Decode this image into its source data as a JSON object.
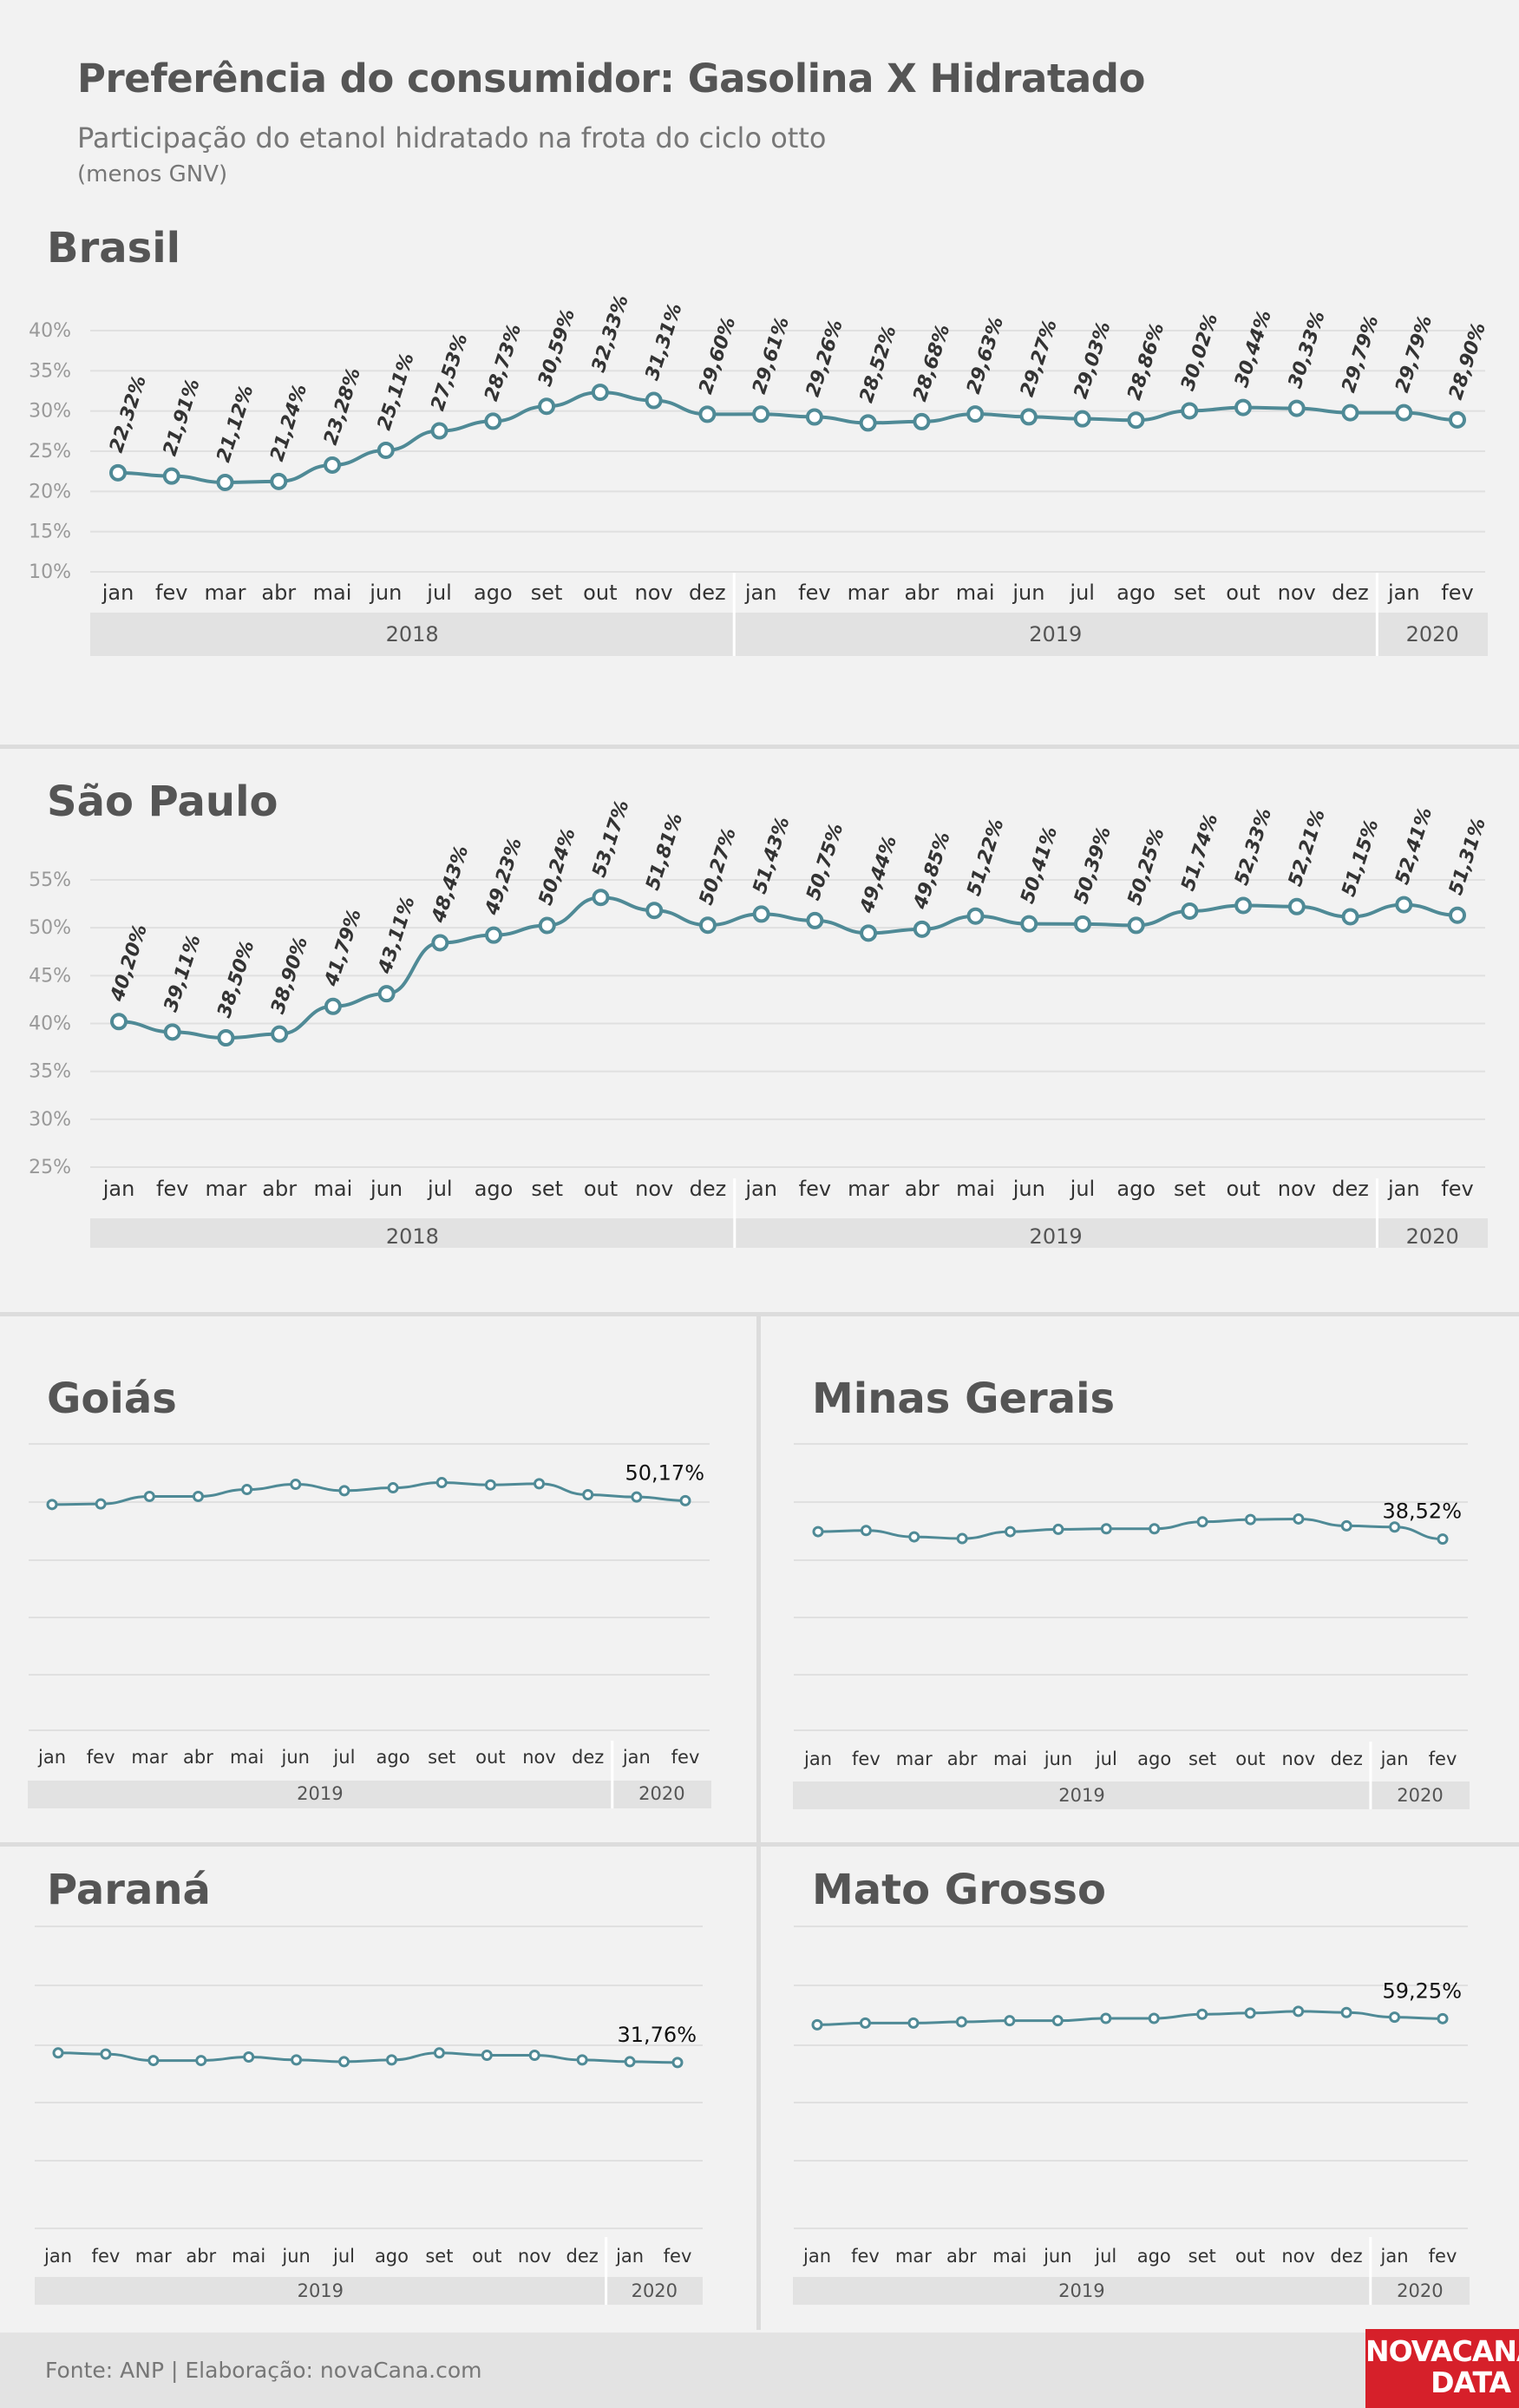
{
  "header": {
    "title": "Preferência do consumidor: Gasolina X Hidratado",
    "subtitle": "Participação do etanol hidratado na frota do ciclo otto",
    "note": "(menos GNV)"
  },
  "footer": {
    "source": "Fonte: ANP | Elaboração: novaCana.com",
    "logo_line1": "NOVACANA",
    "logo_line2": "DATA"
  },
  "colors": {
    "line": "#4f8a96",
    "marker_fill": "#ffffff",
    "year_band": "#e2e2e2",
    "grid": "#e0e0e0",
    "logo": "#d6202a"
  },
  "chart_data": [
    {
      "id": "brasil",
      "type": "line",
      "title": "Brasil",
      "categories": [
        "jan",
        "fev",
        "mar",
        "abr",
        "mai",
        "jun",
        "jul",
        "ago",
        "set",
        "out",
        "nov",
        "dez",
        "jan",
        "fev",
        "mar",
        "abr",
        "mai",
        "jun",
        "jul",
        "ago",
        "set",
        "out",
        "nov",
        "dez",
        "jan",
        "fev"
      ],
      "years": [
        {
          "label": "2018",
          "count": 12
        },
        {
          "label": "2019",
          "count": 12
        },
        {
          "label": "2020",
          "count": 2
        }
      ],
      "values": [
        22.32,
        21.91,
        21.12,
        21.24,
        23.28,
        25.11,
        27.53,
        28.73,
        30.59,
        32.33,
        31.31,
        29.6,
        29.61,
        29.26,
        28.52,
        28.68,
        29.63,
        29.27,
        29.03,
        28.86,
        30.02,
        30.44,
        30.33,
        29.79,
        29.79,
        28.9
      ],
      "labels": [
        "22,32%",
        "21,91%",
        "21,12%",
        "21,24%",
        "23,28%",
        "25,11%",
        "27,53%",
        "28,73%",
        "30,59%",
        "32,33%",
        "31,31%",
        "29,60%",
        "29,61%",
        "29,26%",
        "28,52%",
        "28,68%",
        "29,63%",
        "29,27%",
        "29,03%",
        "28,86%",
        "30,02%",
        "30,44%",
        "30,33%",
        "29,79%",
        "29,79%",
        "28,90%"
      ],
      "yticks": [
        "40%",
        "35%",
        "30%",
        "25%",
        "20%",
        "15%",
        "10%"
      ],
      "ylim": [
        10,
        40
      ],
      "grid": true
    },
    {
      "id": "sao-paulo",
      "type": "line",
      "title": "São Paulo",
      "categories": [
        "jan",
        "fev",
        "mar",
        "abr",
        "mai",
        "jun",
        "jul",
        "ago",
        "set",
        "out",
        "nov",
        "dez",
        "jan",
        "fev",
        "mar",
        "abr",
        "mai",
        "jun",
        "jul",
        "ago",
        "set",
        "out",
        "nov",
        "dez",
        "jan",
        "fev"
      ],
      "years": [
        {
          "label": "2018",
          "count": 12
        },
        {
          "label": "2019",
          "count": 12
        },
        {
          "label": "2020",
          "count": 2
        }
      ],
      "values": [
        40.2,
        39.11,
        38.5,
        38.9,
        41.79,
        43.11,
        48.43,
        49.23,
        50.24,
        53.17,
        51.81,
        50.27,
        51.43,
        50.75,
        49.44,
        49.85,
        51.22,
        50.41,
        50.39,
        50.25,
        51.74,
        52.33,
        52.21,
        51.15,
        52.41,
        51.31
      ],
      "labels": [
        "40,20%",
        "39,11%",
        "38,50%",
        "38,90%",
        "41,79%",
        "43,11%",
        "48,43%",
        "49,23%",
        "50,24%",
        "53,17%",
        "51,81%",
        "50,27%",
        "51,43%",
        "50,75%",
        "49,44%",
        "49,85%",
        "51,22%",
        "50,41%",
        "50,39%",
        "50,25%",
        "51,74%",
        "52,33%",
        "52,21%",
        "51,15%",
        "52,41%",
        "51,31%"
      ],
      "yticks": [
        "55%",
        "50%",
        "45%",
        "40%",
        "35%",
        "30%",
        "25%"
      ],
      "ylim": [
        25,
        55
      ],
      "grid": true
    },
    {
      "id": "goias",
      "type": "line",
      "title": "Goiás",
      "categories": [
        "jan",
        "fev",
        "mar",
        "abr",
        "mai",
        "jun",
        "jul",
        "ago",
        "set",
        "out",
        "nov",
        "dez",
        "jan",
        "fev"
      ],
      "years": [
        {
          "label": "2019",
          "count": 12
        },
        {
          "label": "2020",
          "count": 2
        }
      ],
      "values": [
        49.5,
        49.6,
        50.9,
        50.9,
        52.1,
        53.0,
        51.9,
        52.4,
        53.3,
        52.9,
        53.1,
        51.2,
        50.8,
        50.17
      ],
      "last_label": "50,17%",
      "ylim": [
        20,
        60
      ],
      "grid": true
    },
    {
      "id": "minas-gerais",
      "type": "line",
      "title": "Minas Gerais",
      "categories": [
        "jan",
        "fev",
        "mar",
        "abr",
        "mai",
        "jun",
        "jul",
        "ago",
        "set",
        "out",
        "nov",
        "dez",
        "jan",
        "fev"
      ],
      "years": [
        {
          "label": "2019",
          "count": 12
        },
        {
          "label": "2020",
          "count": 2
        }
      ],
      "values": [
        39.8,
        40.0,
        38.9,
        38.6,
        39.8,
        40.2,
        40.3,
        40.3,
        41.5,
        41.9,
        42.0,
        40.8,
        40.6,
        38.52
      ],
      "last_label": "38,52%",
      "ylim": [
        15,
        55
      ],
      "grid": true
    },
    {
      "id": "parana",
      "type": "line",
      "title": "Paraná",
      "categories": [
        "jan",
        "fev",
        "mar",
        "abr",
        "mai",
        "jun",
        "jul",
        "ago",
        "set",
        "out",
        "nov",
        "dez",
        "jan",
        "fev"
      ],
      "years": [
        {
          "label": "2019",
          "count": 12
        },
        {
          "label": "2020",
          "count": 2
        }
      ],
      "values": [
        33.4,
        33.2,
        32.1,
        32.1,
        32.7,
        32.2,
        31.9,
        32.2,
        33.4,
        33.0,
        33.0,
        32.2,
        31.9,
        31.76
      ],
      "last_label": "31,76%",
      "ylim": [
        15,
        55
      ],
      "grid": true
    },
    {
      "id": "mato-grosso",
      "type": "line",
      "title": "Mato Grosso",
      "categories": [
        "jan",
        "fev",
        "mar",
        "abr",
        "mai",
        "jun",
        "jul",
        "ago",
        "set",
        "out",
        "nov",
        "dez",
        "jan",
        "fev"
      ],
      "years": [
        {
          "label": "2019",
          "count": 12
        },
        {
          "label": "2020",
          "count": 2
        }
      ],
      "values": [
        58.2,
        58.5,
        58.5,
        58.7,
        58.9,
        58.9,
        59.3,
        59.3,
        60.0,
        60.2,
        60.5,
        60.3,
        59.5,
        59.25
      ],
      "last_label": "59,25%",
      "ylim": [
        35,
        75
      ],
      "grid": true
    }
  ]
}
